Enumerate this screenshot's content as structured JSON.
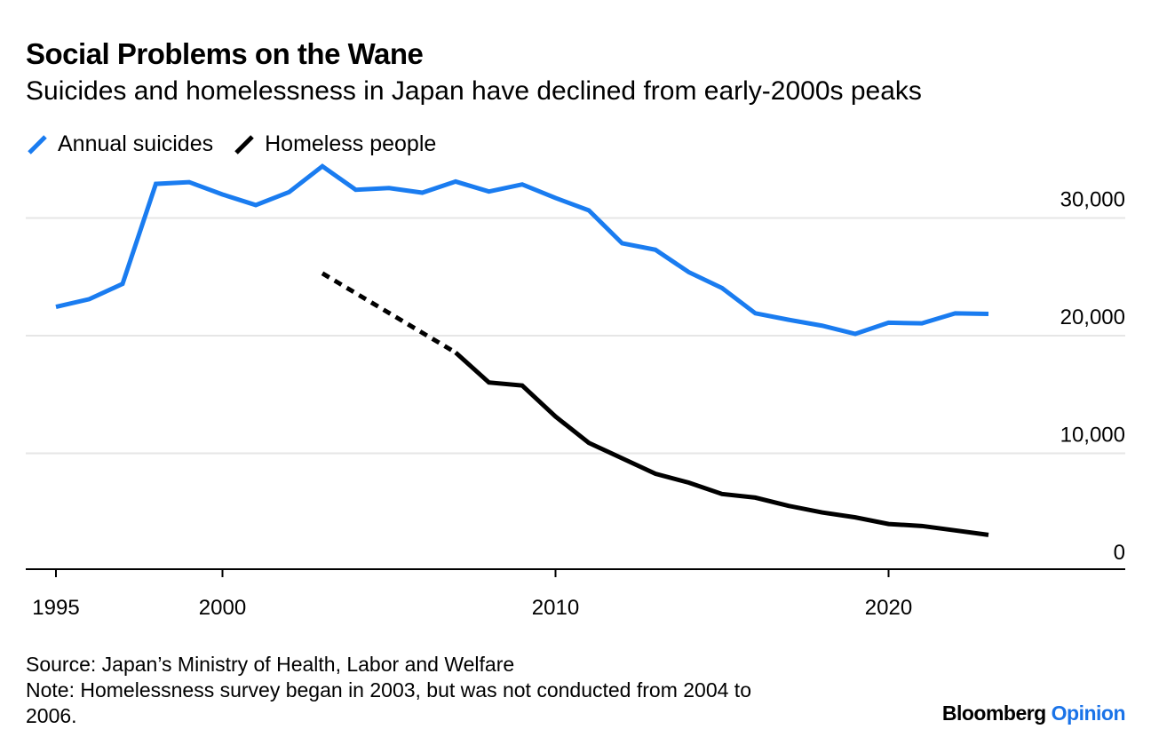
{
  "chart_data": {
    "type": "line",
    "title": "Social Problems on the Wane",
    "subtitle": "Suicides and homelessness in Japan have declined from early-2000s peaks",
    "xlabel": "",
    "ylabel": "",
    "ylim": [
      0,
      35000
    ],
    "xlim": [
      1994,
      2027
    ],
    "x_ticks": [
      1995,
      2000,
      2010,
      2020
    ],
    "x_tick_labels": [
      "1995",
      "2000",
      "2010",
      "2020"
    ],
    "y_ticks": [
      0,
      10000,
      20000,
      30000
    ],
    "y_tick_labels": [
      "0",
      "10,000",
      "20,000",
      "30,000"
    ],
    "grid": true,
    "legend_placement": "top-left",
    "series": [
      {
        "name": "Annual suicides",
        "color": "#1a7cf0",
        "x": [
          1995,
          1996,
          1997,
          1998,
          1999,
          2000,
          2001,
          2002,
          2003,
          2004,
          2005,
          2006,
          2007,
          2008,
          2009,
          2010,
          2011,
          2012,
          2013,
          2014,
          2015,
          2016,
          2017,
          2018,
          2019,
          2020,
          2021,
          2022,
          2023
        ],
        "values": [
          22450,
          23100,
          24400,
          32900,
          33050,
          32000,
          31100,
          32200,
          34400,
          32400,
          32550,
          32150,
          33100,
          32250,
          32850,
          31700,
          30650,
          27850,
          27300,
          25400,
          24050,
          21900,
          21350,
          20850,
          20150,
          21100,
          21050,
          21900,
          21850
        ]
      },
      {
        "name": "Homeless people",
        "color": "#000000",
        "x": [
          2003,
          2007,
          2008,
          2009,
          2010,
          2011,
          2012,
          2013,
          2014,
          2015,
          2016,
          2017,
          2018,
          2019,
          2020,
          2021,
          2022,
          2023
        ],
        "values": [
          25296,
          18564,
          16018,
          15759,
          13124,
          10890,
          9576,
          8265,
          7508,
          6541,
          6235,
          5534,
          4977,
          4555,
          3992,
          3824,
          3448,
          3065
        ],
        "dashed_until": 2007
      }
    ]
  },
  "footer": {
    "source": "Source: Japan’s Ministry of Health, Labor and Welfare",
    "note_line1": "Note: Homelessness survey began in 2003, but was not conducted from 2004 to",
    "note_line2": "2006.",
    "brand": "Bloomberg",
    "brand_accent": "Opinion"
  }
}
